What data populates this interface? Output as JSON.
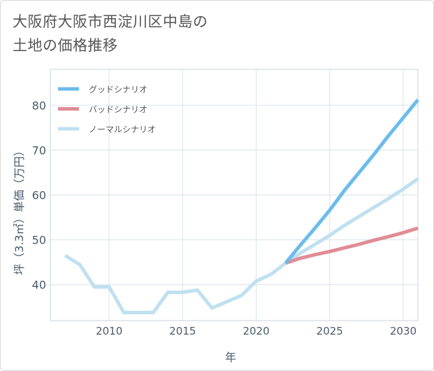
{
  "title": {
    "line1": "大阪府大阪市西淀川区中島の",
    "line2": "土地の価格推移"
  },
  "chart_data": {
    "type": "line",
    "title": "大阪府大阪市西淀川区中島の土地の価格推移",
    "xlabel": "年",
    "ylabel": "坪（3.3㎡）単価（万円）",
    "xlim": [
      2006,
      2031
    ],
    "ylim": [
      32,
      88
    ],
    "xticks": [
      2010,
      2015,
      2020,
      2025,
      2030
    ],
    "yticks": [
      40,
      50,
      60,
      70,
      80
    ],
    "grid": true,
    "legend_position": "top-left",
    "series": [
      {
        "name": "グッドシナリオ",
        "color": "#6bbcec",
        "x": [
          2022,
          2023,
          2024,
          2025,
          2026,
          2027,
          2028,
          2029,
          2030,
          2031
        ],
        "y": [
          44.8,
          48.8,
          52.6,
          56.6,
          61.0,
          65.0,
          69.0,
          73.2,
          77.2,
          81.2
        ]
      },
      {
        "name": "バッドシナリオ",
        "color": "#e08c96",
        "x": [
          2022,
          2023,
          2024,
          2025,
          2026,
          2027,
          2028,
          2029,
          2030,
          2031
        ],
        "y": [
          44.8,
          45.9,
          46.7,
          47.4,
          48.2,
          49.0,
          49.9,
          50.7,
          51.6,
          52.6
        ]
      },
      {
        "name": "ノーマルシナリオ",
        "color": "#bfe0ef",
        "x": [
          2007,
          2008,
          2009,
          2010,
          2011,
          2012,
          2013,
          2014,
          2015,
          2016,
          2017,
          2018,
          2019,
          2020,
          2021,
          2022,
          2023,
          2024,
          2025,
          2026,
          2027,
          2028,
          2029,
          2030,
          2031
        ],
        "y": [
          46.5,
          44.5,
          39.5,
          39.5,
          33.8,
          33.8,
          33.8,
          38.3,
          38.3,
          38.8,
          34.8,
          36.2,
          37.6,
          40.8,
          42.3,
          44.8,
          47.0,
          49.0,
          51.0,
          53.2,
          55.2,
          57.2,
          59.2,
          61.3,
          63.6
        ]
      }
    ]
  }
}
